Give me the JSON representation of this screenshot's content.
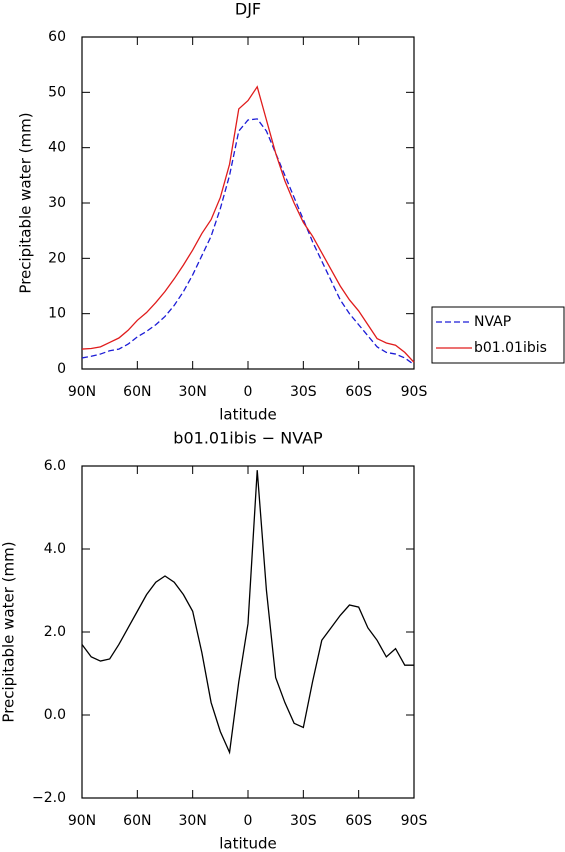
{
  "chart_data": [
    {
      "type": "line",
      "title": "DJF",
      "x_label": "latitude",
      "y_label": "Precipitable water (mm)",
      "x": [
        90,
        85,
        80,
        75,
        70,
        65,
        60,
        55,
        50,
        45,
        40,
        35,
        30,
        25,
        20,
        15,
        10,
        5,
        0,
        -5,
        -10,
        -15,
        -20,
        -25,
        -30,
        -35,
        -40,
        -45,
        -50,
        -55,
        -60,
        -65,
        -70,
        -75,
        -80,
        -85,
        -90
      ],
      "xlim": [
        90,
        -90
      ],
      "xticks": [
        {
          "value": 90,
          "label": "90N"
        },
        {
          "value": 60,
          "label": "60N"
        },
        {
          "value": 30,
          "label": "30N"
        },
        0,
        {
          "value": -30,
          "label": "30S"
        },
        {
          "value": -60,
          "label": "60S"
        },
        {
          "value": -90,
          "label": "90S"
        }
      ],
      "ylim": [
        0,
        60
      ],
      "yticks": [
        0,
        10,
        20,
        30,
        40,
        50,
        60
      ],
      "series": [
        {
          "name": "NVAP",
          "color": "#1c1cd6",
          "dashed": true,
          "values": [
            2.0,
            2.3,
            2.7,
            3.3,
            3.6,
            4.5,
            5.8,
            6.8,
            8.0,
            9.5,
            11.5,
            14,
            17,
            20.5,
            24,
            29,
            35,
            43,
            45,
            45.2,
            43,
            39,
            35,
            31,
            27,
            23,
            19.5,
            16,
            12.5,
            10,
            8,
            6,
            4,
            3,
            2.7,
            2,
            0.8
          ]
        },
        {
          "name": "b01.01ibis",
          "color": "#e01c1c",
          "dashed": false,
          "values": [
            3.6,
            3.7,
            4.0,
            4.8,
            5.6,
            7.0,
            8.8,
            10.2,
            12,
            14,
            16.3,
            18.8,
            21.5,
            24.5,
            27,
            31,
            37,
            47,
            48.5,
            51,
            45,
            39,
            34,
            30,
            26.5,
            24,
            21,
            18,
            15,
            12.5,
            10.5,
            8,
            5.5,
            4.7,
            4.3,
            3,
            1.2
          ]
        }
      ]
    },
    {
      "type": "line",
      "title": "b01.01ibis − NVAP",
      "x_label": "latitude",
      "y_label": "Precipitable water (mm)",
      "x": [
        90,
        85,
        80,
        75,
        70,
        65,
        60,
        55,
        50,
        45,
        40,
        35,
        30,
        25,
        20,
        15,
        10,
        5,
        0,
        -5,
        -10,
        -15,
        -20,
        -25,
        -30,
        -35,
        -40,
        -45,
        -50,
        -55,
        -60,
        -65,
        -70,
        -75,
        -80,
        -85,
        -90
      ],
      "xlim": [
        90,
        -90
      ],
      "xticks": [
        {
          "value": 90,
          "label": "90N"
        },
        {
          "value": 60,
          "label": "60N"
        },
        {
          "value": 30,
          "label": "30N"
        },
        0,
        {
          "value": -30,
          "label": "30S"
        },
        {
          "value": -60,
          "label": "60S"
        },
        {
          "value": -90,
          "label": "90S"
        }
      ],
      "ylim": [
        -2,
        6
      ],
      "yticks": [
        {
          "value": -2,
          "label": "−2.0"
        },
        {
          "value": 0,
          "label": "0.0"
        },
        {
          "value": 2,
          "label": "2.0"
        },
        {
          "value": 4,
          "label": "4.0"
        },
        {
          "value": 6,
          "label": "6.0"
        }
      ],
      "series": [
        {
          "color": "#000000",
          "dashed": false,
          "values": [
            1.7,
            1.4,
            1.3,
            1.35,
            1.7,
            2.1,
            2.5,
            2.9,
            3.2,
            3.35,
            3.2,
            2.9,
            2.5,
            1.5,
            0.3,
            -0.4,
            -0.9,
            0.8,
            2.2,
            5.9,
            3.0,
            0.9,
            0.3,
            -0.2,
            -0.3,
            0.8,
            1.8,
            2.1,
            2.4,
            2.65,
            2.6,
            2.1,
            1.8,
            1.4,
            1.6,
            1.2,
            1.2
          ]
        }
      ]
    }
  ]
}
